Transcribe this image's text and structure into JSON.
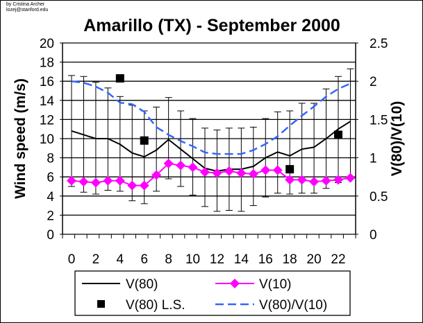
{
  "credit": [
    "by Cristina Archer",
    "lozej@stanford.edu"
  ],
  "chart_data": {
    "type": "line",
    "title": "Amarillo (TX) - September 2000",
    "xlabel": "",
    "ylabel": "Wind speed (m/s)",
    "y2label": "V(80)/V(10)",
    "ylim": [
      0,
      20
    ],
    "y2lim": [
      0,
      2.5
    ],
    "yticks": [
      "0",
      "2",
      "4",
      "6",
      "8",
      "10",
      "12",
      "14",
      "16",
      "18",
      "20"
    ],
    "y2ticks": [
      "0",
      "0.5",
      "1",
      "1.5",
      "2",
      "2.5"
    ],
    "xticks": [
      "0",
      "2",
      "4",
      "6",
      "8",
      "10",
      "12",
      "14",
      "16",
      "18",
      "20",
      "22"
    ],
    "x": [
      0,
      1,
      2,
      3,
      4,
      5,
      6,
      7,
      8,
      9,
      10,
      11,
      12,
      13,
      14,
      15,
      16,
      17,
      18,
      19,
      20,
      21,
      22,
      23
    ],
    "grid": true,
    "legend_position": "bottom",
    "series": [
      {
        "name": "V(80)",
        "axis": "left",
        "color": "#000000",
        "style": "solid",
        "values": [
          10.8,
          10.4,
          10.0,
          10.0,
          9.4,
          8.5,
          8.1,
          8.8,
          9.9,
          8.9,
          7.9,
          6.9,
          6.6,
          6.8,
          6.8,
          7.1,
          8.0,
          8.6,
          8.2,
          8.9,
          9.1,
          10.0,
          11.0,
          11.8
        ],
        "error_upper": [
          16.6,
          16.5,
          15.9,
          15.3,
          14.4,
          13.5,
          12.9,
          13.3,
          14.3,
          12.9,
          12.1,
          11.1,
          10.9,
          11.1,
          11.1,
          11.2,
          12.1,
          12.8,
          12.9,
          13.7,
          13.7,
          15.2,
          16.5,
          17.3
        ],
        "error_lower": [
          5.0,
          4.4,
          4.2,
          4.6,
          4.5,
          3.5,
          3.2,
          4.5,
          5.8,
          5.0,
          4.1,
          2.9,
          2.4,
          2.5,
          2.4,
          3.0,
          3.9,
          4.3,
          4.2,
          4.3,
          4.3,
          4.8,
          5.4,
          5.9
        ]
      },
      {
        "name": "V(10)",
        "axis": "left",
        "color": "#ff00ff",
        "style": "diamond",
        "values": [
          5.6,
          5.5,
          5.4,
          5.6,
          5.6,
          5.1,
          5.1,
          6.2,
          7.4,
          7.2,
          7.0,
          6.5,
          6.4,
          6.6,
          6.4,
          6.3,
          6.7,
          6.7,
          5.7,
          5.7,
          5.5,
          5.6,
          5.7,
          5.9
        ]
      },
      {
        "name": "V(80) L.S.",
        "axis": "left",
        "color": "#000000",
        "style": "square",
        "x": [
          4,
          6,
          18,
          22
        ],
        "values": [
          16.3,
          9.8,
          6.8,
          10.4
        ]
      },
      {
        "name": "V(80)/V(10)",
        "axis": "right",
        "color": "#3366ff",
        "style": "dashed",
        "values": [
          2.0,
          1.98,
          1.93,
          1.85,
          1.72,
          1.7,
          1.6,
          1.4,
          1.3,
          1.22,
          1.15,
          1.07,
          1.05,
          1.05,
          1.05,
          1.1,
          1.18,
          1.28,
          1.42,
          1.55,
          1.67,
          1.8,
          1.9,
          1.97
        ]
      }
    ]
  }
}
